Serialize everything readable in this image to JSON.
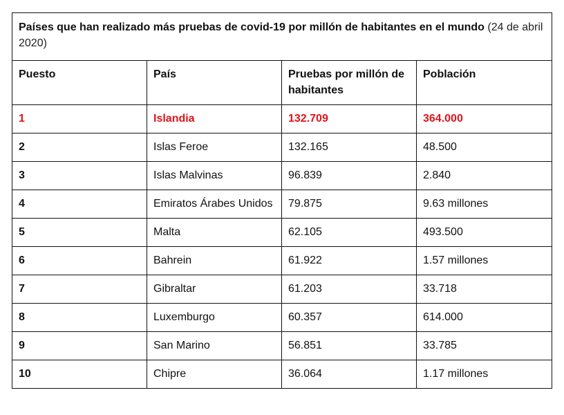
{
  "table": {
    "title_bold": "Países que han realizado más pruebas de covid-19 por millón de habitantes en el mundo",
    "title_date": " (24 de abril 2020)",
    "headers": [
      "Puesto",
      "País",
      "Pruebas por millón de habitantes",
      "Población"
    ],
    "rows": [
      {
        "rank": "1",
        "country": "Islandia",
        "tests": "132.709",
        "population": "364.000"
      },
      {
        "rank": "2",
        "country": "Islas Feroe",
        "tests": "132.165",
        "population": "48.500"
      },
      {
        "rank": "3",
        "country": "Islas Malvinas",
        "tests": "96.839",
        "population": "2.840"
      },
      {
        "rank": "4",
        "country": "Emiratos Árabes Unidos",
        "tests": "79.875",
        "population": "9.63 millones"
      },
      {
        "rank": "5",
        "country": "Malta",
        "tests": "62.105",
        "population": "493.500"
      },
      {
        "rank": "6",
        "country": "Bahrein",
        "tests": "61.922",
        "population": "1.57 millones"
      },
      {
        "rank": "7",
        "country": "Gibraltar",
        "tests": "61.203",
        "population": "33.718"
      },
      {
        "rank": "8",
        "country": "Luxemburgo",
        "tests": "60.357",
        "population": "614.000"
      },
      {
        "rank": "9",
        "country": "San Marino",
        "tests": "56.851",
        "population": "33.785"
      },
      {
        "rank": "10",
        "country": "Chipre",
        "tests": "36.064",
        "population": "1.17 millones"
      }
    ],
    "highlight_color": "#e0141b"
  }
}
